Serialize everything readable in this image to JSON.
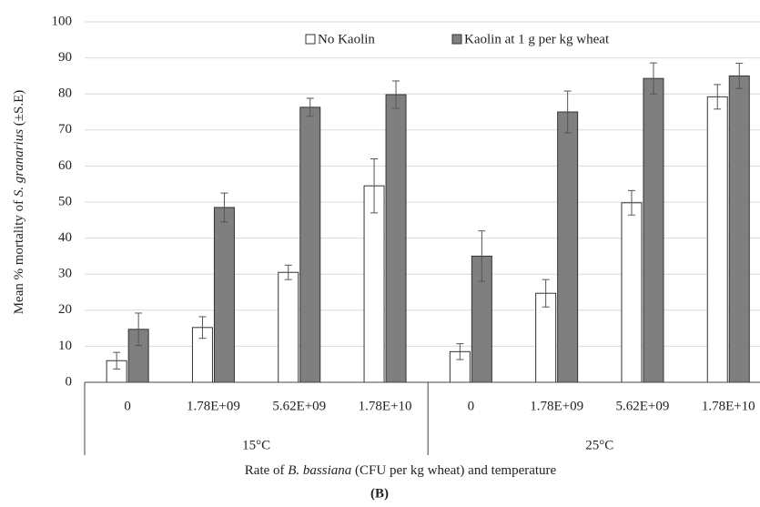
{
  "chart_data": {
    "type": "bar",
    "ylabel_parts": [
      "Mean % mortality of ",
      "S. granarius",
      " (±S.E)"
    ],
    "xlabel_parts": [
      "Rate of ",
      "B. bassiana",
      " (CFU per kg wheat) and temperature"
    ],
    "caption": "(B)",
    "categories": [
      "0",
      "1.78E+09",
      "5.62E+09",
      "1.78E+10",
      "0",
      "1.78E+09",
      "5.62E+09",
      "1.78E+10"
    ],
    "groups": [
      "15°C",
      "25°C"
    ],
    "series": [
      {
        "name": "No Kaolin",
        "color": "#ffffff",
        "values": [
          6,
          15.2,
          30.5,
          54.5,
          8.5,
          24.7,
          49.8,
          79.2
        ],
        "errors": [
          2.3,
          3,
          2,
          7.5,
          2.2,
          3.8,
          3.4,
          3.4
        ]
      },
      {
        "name": "Kaolin at 1 g per kg wheat",
        "color": "#7f7f7f",
        "values": [
          14.7,
          48.5,
          76.3,
          79.8,
          35,
          75,
          84.3,
          85
        ],
        "errors": [
          4.5,
          4,
          2.5,
          3.8,
          7,
          5.8,
          4.3,
          3.5
        ]
      }
    ],
    "ylim": [
      0,
      100
    ],
    "yticks": [
      0,
      10,
      20,
      30,
      40,
      50,
      60,
      70,
      80,
      90,
      100
    ],
    "grid": true,
    "legend": "top"
  }
}
